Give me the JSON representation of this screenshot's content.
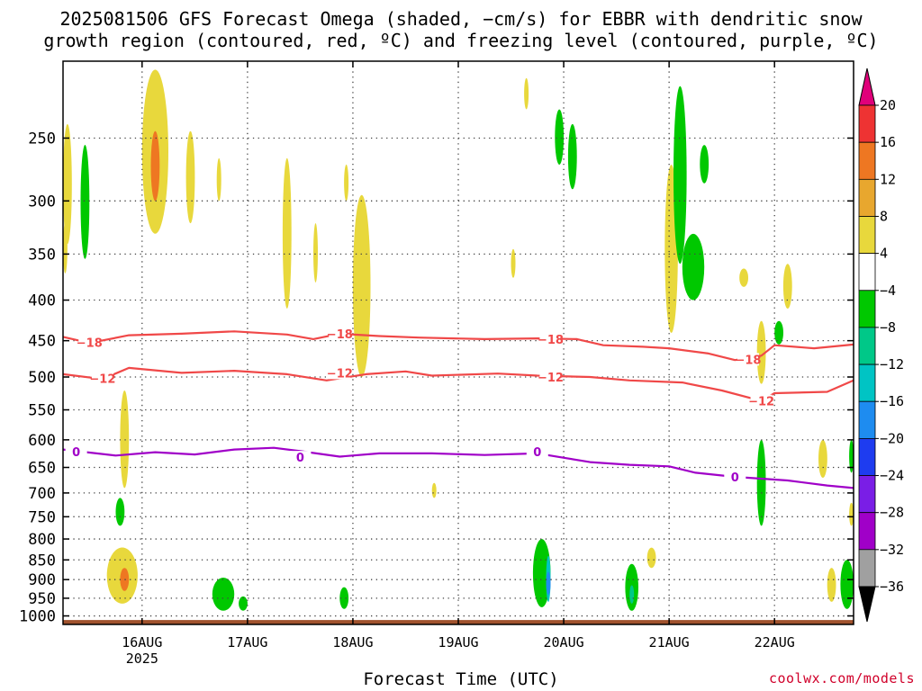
{
  "title_line1": "2025081506 GFS Forecast Omega (shaded, −cm/s) for EBBR with dendritic snow",
  "title_line2": "growth region (contoured, red, ºC) and freezing level (contoured, purple, ºC)",
  "credit": "coolwx.com/models",
  "chart_data": {
    "type": "heatmap",
    "xlabel": "Forecast Time (UTC)",
    "ylabel": "",
    "x_axis": {
      "range": [
        "2025-08-15T06:00",
        "2025-08-22T18:00"
      ],
      "ticks": [
        {
          "time": "2025-08-16T00:00",
          "label": "16AUG",
          "sub": "2025"
        },
        {
          "time": "2025-08-17T00:00",
          "label": "17AUG"
        },
        {
          "time": "2025-08-18T00:00",
          "label": "18AUG"
        },
        {
          "time": "2025-08-19T00:00",
          "label": "19AUG"
        },
        {
          "time": "2025-08-20T00:00",
          "label": "20AUG"
        },
        {
          "time": "2025-08-21T00:00",
          "label": "21AUG"
        },
        {
          "time": "2025-08-22T00:00",
          "label": "22AUG"
        }
      ]
    },
    "y_axis": {
      "unit": "hPa",
      "scale": "log",
      "inverted": true,
      "range": [
        1025,
        200
      ],
      "ticks": [
        250,
        300,
        350,
        400,
        450,
        500,
        550,
        600,
        650,
        700,
        750,
        800,
        850,
        900,
        950,
        1000
      ],
      "grid": true
    },
    "colorbar": {
      "top_color": "#e0007a",
      "bottom_color": "#000000",
      "levels": [
        {
          "label": "20",
          "color": "#ee3333"
        },
        {
          "label": "16",
          "color": "#ee7722"
        },
        {
          "label": "12",
          "color": "#e8a72e"
        },
        {
          "label": "8",
          "color": "#e8d83c"
        },
        {
          "label": "4",
          "color": "#ffffff"
        },
        {
          "label": "−4",
          "color": "#00c800"
        },
        {
          "label": "−8",
          "color": "#00c888"
        },
        {
          "label": "−12",
          "color": "#00c4c4"
        },
        {
          "label": "−16",
          "color": "#1e8cf0"
        },
        {
          "label": "−20",
          "color": "#1e3cf0"
        },
        {
          "label": "−24",
          "color": "#7a1ee6"
        },
        {
          "label": "−28",
          "color": "#a000c8"
        },
        {
          "label": "−32",
          "color": "#a0a0a0"
        },
        {
          "label": "−36",
          "color": "#000000"
        }
      ]
    },
    "contour_lines": [
      {
        "level": "−18",
        "color": "#f04848",
        "points": [
          [
            "2025-08-15T06:00",
            445
          ],
          [
            "2025-08-15T12:00",
            453
          ],
          [
            "2025-08-15T21:00",
            443
          ],
          [
            "2025-08-16T09:00",
            441
          ],
          [
            "2025-08-16T21:00",
            438
          ],
          [
            "2025-08-17T09:00",
            442
          ],
          [
            "2025-08-17T15:00",
            448
          ],
          [
            "2025-08-17T21:00",
            441
          ],
          [
            "2025-08-18T06:00",
            444
          ],
          [
            "2025-08-18T15:00",
            446
          ],
          [
            "2025-08-19T06:00",
            448
          ],
          [
            "2025-08-19T18:00",
            447
          ],
          [
            "2025-08-20T03:00",
            448
          ],
          [
            "2025-08-20T09:00",
            456
          ],
          [
            "2025-08-20T18:00",
            458
          ],
          [
            "2025-08-21T00:00",
            460
          ],
          [
            "2025-08-21T09:00",
            467
          ],
          [
            "2025-08-21T15:00",
            476
          ],
          [
            "2025-08-21T21:00",
            470
          ],
          [
            "2025-08-22T00:00",
            456
          ],
          [
            "2025-08-22T09:00",
            460
          ],
          [
            "2025-08-22T18:00",
            455
          ]
        ],
        "labels": [
          [
            "2025-08-15T12:00",
            452
          ],
          [
            "2025-08-17T21:00",
            441
          ],
          [
            "2025-08-19T21:00",
            448
          ],
          [
            "2025-08-21T18:00",
            475
          ]
        ]
      },
      {
        "level": "−12",
        "color": "#f04848",
        "points": [
          [
            "2025-08-15T06:00",
            496
          ],
          [
            "2025-08-15T15:00",
            503
          ],
          [
            "2025-08-15T21:00",
            487
          ],
          [
            "2025-08-16T09:00",
            494
          ],
          [
            "2025-08-16T21:00",
            491
          ],
          [
            "2025-08-17T09:00",
            496
          ],
          [
            "2025-08-17T18:00",
            505
          ],
          [
            "2025-08-18T03:00",
            496
          ],
          [
            "2025-08-18T12:00",
            492
          ],
          [
            "2025-08-18T18:00",
            498
          ],
          [
            "2025-08-19T09:00",
            495
          ],
          [
            "2025-08-19T18:00",
            498
          ],
          [
            "2025-08-20T06:00",
            500
          ],
          [
            "2025-08-20T15:00",
            505
          ],
          [
            "2025-08-21T03:00",
            508
          ],
          [
            "2025-08-21T12:00",
            520
          ],
          [
            "2025-08-21T21:00",
            536
          ],
          [
            "2025-08-22T00:00",
            524
          ],
          [
            "2025-08-22T12:00",
            522
          ],
          [
            "2025-08-22T18:00",
            505
          ]
        ],
        "labels": [
          [
            "2025-08-15T15:00",
            502
          ],
          [
            "2025-08-17T21:00",
            494
          ],
          [
            "2025-08-19T21:00",
            500
          ],
          [
            "2025-08-21T21:00",
            536
          ]
        ]
      },
      {
        "level": "0",
        "color": "#a000c8",
        "points": [
          [
            "2025-08-15T06:00",
            617
          ],
          [
            "2025-08-15T18:00",
            628
          ],
          [
            "2025-08-16T03:00",
            622
          ],
          [
            "2025-08-16T12:00",
            626
          ],
          [
            "2025-08-16T21:00",
            617
          ],
          [
            "2025-08-17T06:00",
            614
          ],
          [
            "2025-08-17T12:00",
            620
          ],
          [
            "2025-08-17T21:00",
            630
          ],
          [
            "2025-08-18T06:00",
            624
          ],
          [
            "2025-08-18T18:00",
            624
          ],
          [
            "2025-08-19T06:00",
            627
          ],
          [
            "2025-08-19T18:00",
            624
          ],
          [
            "2025-08-20T06:00",
            640
          ],
          [
            "2025-08-20T15:00",
            645
          ],
          [
            "2025-08-21T00:00",
            648
          ],
          [
            "2025-08-21T06:00",
            660
          ],
          [
            "2025-08-21T15:00",
            668
          ],
          [
            "2025-08-22T03:00",
            675
          ],
          [
            "2025-08-22T12:00",
            685
          ],
          [
            "2025-08-22T18:00",
            690
          ]
        ],
        "labels": [
          [
            "2025-08-15T09:00",
            621
          ],
          [
            "2025-08-17T12:00",
            631
          ],
          [
            "2025-08-19T18:00",
            621
          ],
          [
            "2025-08-21T15:00",
            668
          ]
        ]
      }
    ],
    "omega_regions": [
      {
        "value": 4,
        "t0": "2025-08-15T06:00",
        "t1": "2025-08-15T08:00",
        "p_top": 240,
        "p_bot": 340
      },
      {
        "value": -4,
        "t0": "2025-08-15T10:00",
        "t1": "2025-08-15T12:00",
        "p_top": 255,
        "p_bot": 355
      },
      {
        "value": 4,
        "t0": "2025-08-15T06:00",
        "t1": "2025-08-15T07:00",
        "p_top": 320,
        "p_bot": 370
      },
      {
        "value": 4,
        "t0": "2025-08-15T19:00",
        "t1": "2025-08-15T21:00",
        "p_top": 520,
        "p_bot": 690
      },
      {
        "value": -4,
        "t0": "2025-08-15T18:00",
        "t1": "2025-08-15T20:00",
        "p_top": 710,
        "p_bot": 770
      },
      {
        "value": 4,
        "t0": "2025-08-15T16:00",
        "t1": "2025-08-15T23:00",
        "p_top": 820,
        "p_bot": 965
      },
      {
        "value": 12,
        "t0": "2025-08-15T19:00",
        "t1": "2025-08-15T21:00",
        "p_top": 870,
        "p_bot": 930
      },
      {
        "value": 4,
        "t0": "2025-08-16T00:00",
        "t1": "2025-08-16T06:00",
        "p_top": 205,
        "p_bot": 330
      },
      {
        "value": 12,
        "t0": "2025-08-16T02:00",
        "t1": "2025-08-16T04:00",
        "p_top": 245,
        "p_bot": 300
      },
      {
        "value": 4,
        "t0": "2025-08-16T10:00",
        "t1": "2025-08-16T12:00",
        "p_top": 245,
        "p_bot": 320
      },
      {
        "value": 4,
        "t0": "2025-08-16T17:00",
        "t1": "2025-08-16T18:00",
        "p_top": 265,
        "p_bot": 300
      },
      {
        "value": -4,
        "t0": "2025-08-16T16:00",
        "t1": "2025-08-16T21:00",
        "p_top": 895,
        "p_bot": 985
      },
      {
        "value": -4,
        "t0": "2025-08-16T22:00",
        "t1": "2025-08-17T00:00",
        "p_top": 945,
        "p_bot": 985
      },
      {
        "value": 4,
        "t0": "2025-08-17T08:00",
        "t1": "2025-08-17T10:00",
        "p_top": 265,
        "p_bot": 410
      },
      {
        "value": 4,
        "t0": "2025-08-17T15:00",
        "t1": "2025-08-17T16:00",
        "p_top": 320,
        "p_bot": 380
      },
      {
        "value": 4,
        "t0": "2025-08-17T22:00",
        "t1": "2025-08-17T23:00",
        "p_top": 270,
        "p_bot": 300
      },
      {
        "value": -4,
        "t0": "2025-08-17T21:00",
        "t1": "2025-08-17T23:00",
        "p_top": 920,
        "p_bot": 980
      },
      {
        "value": 4,
        "t0": "2025-08-18T00:00",
        "t1": "2025-08-18T04:00",
        "p_top": 295,
        "p_bot": 500
      },
      {
        "value": 4,
        "t0": "2025-08-18T18:00",
        "t1": "2025-08-18T19:00",
        "p_top": 680,
        "p_bot": 710
      },
      {
        "value": 4,
        "t0": "2025-08-19T12:00",
        "t1": "2025-08-19T13:00",
        "p_top": 345,
        "p_bot": 375
      },
      {
        "value": 4,
        "t0": "2025-08-19T15:00",
        "t1": "2025-08-19T16:00",
        "p_top": 210,
        "p_bot": 230
      },
      {
        "value": -4,
        "t0": "2025-08-19T17:00",
        "t1": "2025-08-19T21:00",
        "p_top": 800,
        "p_bot": 975
      },
      {
        "value": -12,
        "t0": "2025-08-19T20:00",
        "t1": "2025-08-19T21:00",
        "p_top": 840,
        "p_bot": 960
      },
      {
        "value": -16,
        "t0": "2025-08-19T20:00",
        "t1": "2025-08-19T21:00",
        "p_top": 880,
        "p_bot": 940
      },
      {
        "value": -4,
        "t0": "2025-08-19T22:00",
        "t1": "2025-08-20T00:00",
        "p_top": 230,
        "p_bot": 270
      },
      {
        "value": -4,
        "t0": "2025-08-20T01:00",
        "t1": "2025-08-20T03:00",
        "p_top": 240,
        "p_bot": 290
      },
      {
        "value": -4,
        "t0": "2025-08-20T14:00",
        "t1": "2025-08-20T17:00",
        "p_top": 860,
        "p_bot": 985
      },
      {
        "value": -8,
        "t0": "2025-08-20T15:00",
        "t1": "2025-08-20T16:00",
        "p_top": 915,
        "p_bot": 965
      },
      {
        "value": 4,
        "t0": "2025-08-20T19:00",
        "t1": "2025-08-20T21:00",
        "p_top": 820,
        "p_bot": 870
      },
      {
        "value": 4,
        "t0": "2025-08-20T23:00",
        "t1": "2025-08-21T02:00",
        "p_top": 270,
        "p_bot": 440
      },
      {
        "value": -4,
        "t0": "2025-08-21T01:00",
        "t1": "2025-08-21T04:00",
        "p_top": 215,
        "p_bot": 360
      },
      {
        "value": -4,
        "t0": "2025-08-21T03:00",
        "t1": "2025-08-21T08:00",
        "p_top": 330,
        "p_bot": 400
      },
      {
        "value": -4,
        "t0": "2025-08-21T07:00",
        "t1": "2025-08-21T09:00",
        "p_top": 255,
        "p_bot": 285
      },
      {
        "value": 4,
        "t0": "2025-08-21T16:00",
        "t1": "2025-08-21T18:00",
        "p_top": 365,
        "p_bot": 385
      },
      {
        "value": 4,
        "t0": "2025-08-21T20:00",
        "t1": "2025-08-21T22:00",
        "p_top": 425,
        "p_bot": 510
      },
      {
        "value": -4,
        "t0": "2025-08-21T20:00",
        "t1": "2025-08-21T22:00",
        "p_top": 600,
        "p_bot": 770
      },
      {
        "value": -4,
        "t0": "2025-08-22T00:00",
        "t1": "2025-08-22T02:00",
        "p_top": 425,
        "p_bot": 455
      },
      {
        "value": 4,
        "t0": "2025-08-22T02:00",
        "t1": "2025-08-22T04:00",
        "p_top": 360,
        "p_bot": 410
      },
      {
        "value": 4,
        "t0": "2025-08-22T10:00",
        "t1": "2025-08-22T12:00",
        "p_top": 600,
        "p_bot": 670
      },
      {
        "value": 4,
        "t0": "2025-08-22T12:00",
        "t1": "2025-08-22T14:00",
        "p_top": 870,
        "p_bot": 960
      },
      {
        "value": -4,
        "t0": "2025-08-22T15:00",
        "t1": "2025-08-22T18:00",
        "p_top": 850,
        "p_bot": 980
      },
      {
        "value": -4,
        "t0": "2025-08-22T17:00",
        "t1": "2025-08-22T18:00",
        "p_top": 600,
        "p_bot": 660
      },
      {
        "value": 4,
        "t0": "2025-08-22T17:00",
        "t1": "2025-08-22T18:00",
        "p_top": 720,
        "p_bot": 770
      }
    ]
  }
}
